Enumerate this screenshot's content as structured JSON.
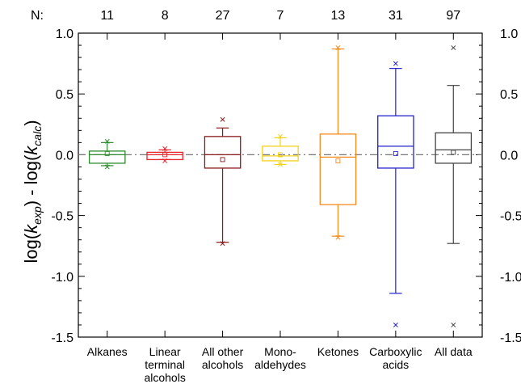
{
  "chart_data": {
    "type": "box",
    "title": "",
    "n_prefix": "N:",
    "ylabel": {
      "parts": [
        {
          "t": "log(",
          "s": "n"
        },
        {
          "t": "k",
          "s": "i"
        },
        {
          "t": "exp",
          "s": "sub"
        },
        {
          "t": ") - log(",
          "s": "n"
        },
        {
          "t": "k",
          "s": "i"
        },
        {
          "t": "calc",
          "s": "sub"
        },
        {
          "t": ")",
          "s": "n"
        }
      ]
    },
    "ylim": [
      -1.5,
      1.0
    ],
    "yticks": [
      1.0,
      0.5,
      0.0,
      -0.5,
      -1.0,
      -1.5
    ],
    "ytick_labels": [
      "1.0",
      "0.5",
      "0.0",
      "-0.5",
      "-1.0",
      "-1.5"
    ],
    "reference_line_y": 0.0,
    "categories": [
      {
        "label": [
          "Alkanes"
        ],
        "n": "11",
        "color": "#2e8b2e",
        "whisker_low": -0.09,
        "q1": -0.07,
        "median": 0.0,
        "q3": 0.03,
        "whisker_high": 0.1,
        "mean": 0.01,
        "outliers_x": [
          0.11,
          -0.1
        ],
        "outliers_dash": [
          0.1,
          -0.09
        ]
      },
      {
        "label": [
          "Linear",
          "terminal",
          "alcohols"
        ],
        "n": "8",
        "color": "#e8262c",
        "whisker_low": -0.04,
        "q1": -0.04,
        "median": 0.0,
        "q3": 0.02,
        "whisker_high": 0.04,
        "mean": 0.0,
        "outliers_x": [
          0.05,
          -0.05
        ],
        "outliers_dash": [
          0.04,
          -0.04
        ]
      },
      {
        "label": [
          "All other",
          "alcohols"
        ],
        "n": "27",
        "color": "#8b1a1a",
        "whisker_low": -0.72,
        "q1": -0.11,
        "median": 0.0,
        "q3": 0.15,
        "whisker_high": 0.22,
        "mean": -0.04,
        "outliers_x": [
          0.29,
          -0.73
        ],
        "outliers_dash": [
          -0.72
        ]
      },
      {
        "label": [
          "Mono-",
          "aldehydes"
        ],
        "n": "7",
        "color": "#f2d21b",
        "whisker_low": -0.08,
        "q1": -0.05,
        "median": -0.01,
        "q3": 0.07,
        "whisker_high": 0.14,
        "mean": 0.0,
        "outliers_x": [
          0.15,
          -0.08
        ],
        "outliers_dash": [
          0.14,
          -0.08
        ]
      },
      {
        "label": [
          "Ketones"
        ],
        "n": "13",
        "color": "#f58a1f",
        "whisker_low": -0.67,
        "q1": -0.41,
        "median": -0.02,
        "q3": 0.17,
        "whisker_high": 0.87,
        "mean": -0.05,
        "outliers_x": [
          0.88,
          -0.68
        ],
        "outliers_dash": [
          0.87,
          -0.67
        ]
      },
      {
        "label": [
          "Carboxylic",
          "acids"
        ],
        "n": "31",
        "color": "#2222cc",
        "whisker_low": -1.14,
        "q1": -0.11,
        "median": 0.07,
        "q3": 0.32,
        "whisker_high": 0.71,
        "mean": 0.01,
        "outliers_x": [
          0.75,
          -1.4
        ],
        "outliers_dash": []
      },
      {
        "label": [
          "All data"
        ],
        "n": "97",
        "color": "#444444",
        "whisker_low": -0.73,
        "q1": -0.07,
        "median": 0.04,
        "q3": 0.18,
        "whisker_high": 0.57,
        "mean": 0.02,
        "outliers_x": [
          0.88,
          -1.4
        ],
        "outliers_dash": []
      }
    ]
  }
}
